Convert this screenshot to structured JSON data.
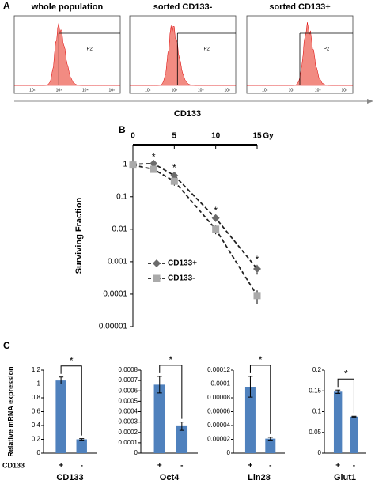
{
  "panel_labels": [
    "A",
    "B",
    "C"
  ],
  "flow_panel": {
    "panels": [
      {
        "title": "whole population",
        "gate_label": "P2"
      },
      {
        "title": "sorted CD133-",
        "gate_label": "P2"
      },
      {
        "title": "sorted CD133+",
        "gate_label": "P2"
      }
    ],
    "tick_labels": [
      "10²",
      "10³",
      "10⁴",
      "10⁵"
    ],
    "axis_label": "CD133"
  },
  "chart_data": [
    {
      "type": "line",
      "x": [
        0,
        2.5,
        5,
        10,
        15
      ],
      "x_label": "Gy",
      "y_label": "Surviving Fraction",
      "xlim": [
        0,
        15
      ],
      "xticks": [
        0,
        5,
        10,
        15
      ],
      "ylim": [
        1e-05,
        4
      ],
      "yticks": [
        1,
        0.1,
        0.01,
        0.001,
        0.0001,
        1e-05
      ],
      "log_y": true,
      "line_color": "#222",
      "legend": "lower left",
      "series": [
        {
          "name": "CD133+",
          "color": "#6b6b6b",
          "marker": "diamond",
          "values": [
            1,
            1.05,
            0.45,
            0.022,
            0.0006
          ],
          "errors": [
            0.05,
            0.1,
            0.08,
            0.004,
            0.0002
          ]
        },
        {
          "name": "CD133-",
          "color": "#aaaaaa",
          "marker": "square",
          "values": [
            0.95,
            0.7,
            0.3,
            0.01,
            9e-05
          ],
          "errors": [
            0.05,
            0.08,
            0.08,
            0.003,
            4e-05
          ]
        }
      ],
      "annotations": [
        "*",
        "*",
        "*",
        "*"
      ]
    },
    {
      "type": "bar",
      "title": "CD133",
      "y_label": "Relative mRNA expression",
      "row_label": "CD133",
      "categories": [
        "+",
        "-"
      ],
      "values": [
        1.05,
        0.2
      ],
      "errors": [
        0.05,
        0.01
      ],
      "color": "#4f81bd",
      "ylim": [
        0,
        1.2
      ],
      "yticks": [
        0,
        0.2,
        0.4,
        0.6,
        0.8,
        1,
        1.2
      ],
      "annotation": "*"
    },
    {
      "type": "bar",
      "title": "Oct4",
      "categories": [
        "+",
        "-"
      ],
      "values": [
        0.00066,
        0.00026
      ],
      "errors": [
        8e-05,
        4e-05
      ],
      "color": "#4f81bd",
      "ylim": [
        0,
        0.0008
      ],
      "yticks": [
        0,
        0.0001,
        0.0002,
        0.0003,
        0.0004,
        0.0005,
        0.0006,
        0.0007,
        0.0008
      ],
      "annotation": "*"
    },
    {
      "type": "bar",
      "title": "Lin28",
      "categories": [
        "+",
        "-"
      ],
      "values": [
        9.6e-05,
        2.1e-05
      ],
      "errors": [
        1.5e-05,
        2e-06
      ],
      "color": "#4f81bd",
      "ylim": [
        0,
        0.00012
      ],
      "yticks": [
        0,
        2e-05,
        4e-05,
        6e-05,
        8e-05,
        0.0001,
        0.00012
      ],
      "annotation": "*"
    },
    {
      "type": "bar",
      "title": "Glut1",
      "categories": [
        "+",
        "-"
      ],
      "values": [
        0.148,
        0.088
      ],
      "errors": [
        0.004,
        0.001
      ],
      "color": "#4f81bd",
      "ylim": [
        0,
        0.2
      ],
      "yticks": [
        0,
        0.05,
        0.1,
        0.15,
        0.2
      ],
      "annotation": "*"
    }
  ]
}
